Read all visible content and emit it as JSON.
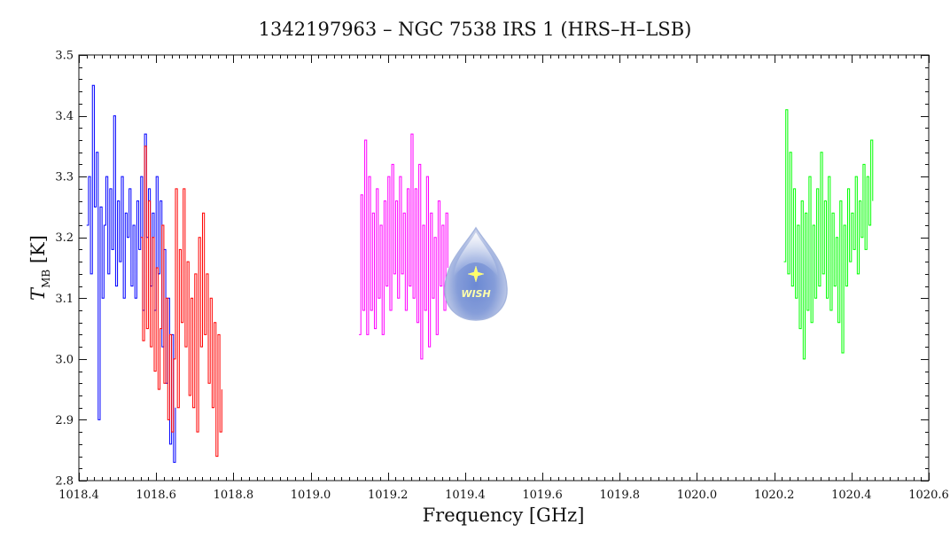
{
  "chart_data": {
    "type": "line",
    "title": "1342197963 – NGC 7538 IRS 1 (HRS–H–LSB)",
    "xlabel": "Frequency [GHz]",
    "ylabel_main": "T",
    "ylabel_sub": "MB",
    "ylabel_unit": " [K]",
    "xlim": [
      1018.4,
      1020.6
    ],
    "ylim": [
      2.8,
      3.5
    ],
    "xticks": [
      "1018.4",
      "1018.6",
      "1018.8",
      "1019.0",
      "1019.2",
      "1019.4",
      "1019.6",
      "1019.8",
      "1020.0",
      "1020.2",
      "1020.4",
      "1020.6"
    ],
    "yticks": [
      "2.8",
      "2.9",
      "3.0",
      "3.1",
      "3.2",
      "3.3",
      "3.4",
      "3.5"
    ],
    "x_minor_step": 0.02,
    "y_minor_step": 0.02,
    "grid": false,
    "legend": "none",
    "series": [
      {
        "color": "#0000ff",
        "x": [
          1018.42,
          1018.425,
          1018.43,
          1018.435,
          1018.44,
          1018.445,
          1018.45,
          1018.455,
          1018.46,
          1018.465,
          1018.47,
          1018.475,
          1018.48,
          1018.485,
          1018.49,
          1018.495,
          1018.5,
          1018.505,
          1018.51,
          1018.515,
          1018.52,
          1018.525,
          1018.53,
          1018.535,
          1018.54,
          1018.545,
          1018.55,
          1018.555,
          1018.56,
          1018.565,
          1018.57,
          1018.575,
          1018.58,
          1018.585,
          1018.59,
          1018.595,
          1018.6,
          1018.605,
          1018.61,
          1018.615,
          1018.62,
          1018.625,
          1018.63,
          1018.635,
          1018.64,
          1018.645,
          1018.65
        ],
        "values": [
          3.22,
          3.3,
          3.14,
          3.45,
          3.25,
          3.34,
          2.9,
          3.25,
          3.1,
          3.22,
          3.3,
          3.14,
          3.28,
          3.18,
          3.4,
          3.12,
          3.26,
          3.16,
          3.3,
          3.1,
          3.24,
          3.2,
          3.28,
          3.12,
          3.22,
          3.1,
          3.26,
          3.18,
          3.3,
          3.08,
          3.37,
          3.2,
          3.28,
          3.12,
          3.24,
          3.08,
          3.3,
          3.14,
          3.26,
          3.02,
          3.18,
          2.96,
          3.1,
          2.86,
          3.04,
          2.83,
          2.92
        ]
      },
      {
        "color": "#ff0000",
        "x": [
          1018.56,
          1018.565,
          1018.57,
          1018.575,
          1018.58,
          1018.585,
          1018.59,
          1018.595,
          1018.6,
          1018.605,
          1018.61,
          1018.615,
          1018.62,
          1018.625,
          1018.63,
          1018.635,
          1018.64,
          1018.645,
          1018.65,
          1018.655,
          1018.66,
          1018.665,
          1018.67,
          1018.675,
          1018.68,
          1018.685,
          1018.69,
          1018.695,
          1018.7,
          1018.705,
          1018.71,
          1018.715,
          1018.72,
          1018.725,
          1018.73,
          1018.735,
          1018.74,
          1018.745,
          1018.75,
          1018.755,
          1018.76,
          1018.765,
          1018.77
        ],
        "values": [
          3.2,
          3.03,
          3.35,
          3.05,
          3.26,
          3.02,
          3.2,
          2.98,
          3.15,
          2.95,
          3.05,
          3.22,
          2.96,
          3.1,
          2.9,
          3.04,
          2.88,
          3.0,
          3.28,
          2.92,
          3.18,
          3.06,
          3.28,
          3.02,
          3.16,
          2.94,
          3.1,
          2.92,
          3.14,
          2.88,
          3.2,
          3.02,
          3.24,
          3.04,
          3.14,
          2.96,
          3.1,
          2.92,
          3.06,
          2.84,
          3.04,
          2.88,
          2.95
        ]
      },
      {
        "color": "#ff00ff",
        "x": [
          1019.125,
          1019.13,
          1019.135,
          1019.14,
          1019.145,
          1019.15,
          1019.155,
          1019.16,
          1019.165,
          1019.17,
          1019.175,
          1019.18,
          1019.185,
          1019.19,
          1019.195,
          1019.2,
          1019.205,
          1019.21,
          1019.215,
          1019.22,
          1019.225,
          1019.23,
          1019.235,
          1019.24,
          1019.245,
          1019.25,
          1019.255,
          1019.26,
          1019.265,
          1019.27,
          1019.275,
          1019.28,
          1019.285,
          1019.29,
          1019.295,
          1019.3,
          1019.305,
          1019.31,
          1019.315,
          1019.32,
          1019.325,
          1019.33,
          1019.335,
          1019.34,
          1019.345,
          1019.35,
          1019.355
        ],
        "values": [
          3.04,
          3.27,
          3.08,
          3.36,
          3.04,
          3.3,
          3.08,
          3.24,
          3.05,
          3.28,
          3.1,
          3.22,
          3.04,
          3.26,
          3.12,
          3.3,
          3.08,
          3.32,
          3.14,
          3.26,
          3.1,
          3.3,
          3.14,
          3.24,
          3.08,
          3.28,
          3.12,
          3.37,
          3.1,
          3.28,
          3.06,
          3.32,
          3.0,
          3.22,
          3.08,
          3.3,
          3.02,
          3.24,
          3.1,
          3.2,
          3.04,
          3.26,
          3.12,
          3.22,
          3.08,
          3.24,
          3.15
        ]
      },
      {
        "color": "#00ff00",
        "x": [
          1020.225,
          1020.23,
          1020.235,
          1020.24,
          1020.245,
          1020.25,
          1020.255,
          1020.26,
          1020.265,
          1020.27,
          1020.275,
          1020.28,
          1020.285,
          1020.29,
          1020.295,
          1020.3,
          1020.305,
          1020.31,
          1020.315,
          1020.32,
          1020.325,
          1020.33,
          1020.335,
          1020.34,
          1020.345,
          1020.35,
          1020.355,
          1020.36,
          1020.365,
          1020.37,
          1020.375,
          1020.38,
          1020.385,
          1020.39,
          1020.395,
          1020.4,
          1020.405,
          1020.41,
          1020.415,
          1020.42,
          1020.425,
          1020.43,
          1020.435,
          1020.44,
          1020.445,
          1020.45,
          1020.455
        ],
        "values": [
          3.16,
          3.41,
          3.14,
          3.34,
          3.12,
          3.28,
          3.1,
          3.22,
          3.05,
          3.26,
          3.0,
          3.24,
          3.08,
          3.3,
          3.06,
          3.22,
          3.1,
          3.28,
          3.12,
          3.34,
          3.14,
          3.26,
          3.1,
          3.3,
          3.08,
          3.24,
          3.12,
          3.2,
          3.06,
          3.26,
          3.01,
          3.22,
          3.12,
          3.28,
          3.16,
          3.24,
          3.18,
          3.3,
          3.14,
          3.26,
          3.2,
          3.32,
          3.18,
          3.3,
          3.22,
          3.36,
          3.26
        ]
      }
    ]
  },
  "watermark": {
    "text": "WISH",
    "colors": {
      "drop_outer": "#b8c4e4",
      "drop_inner": "#6a86cf",
      "star": "#ffff66"
    }
  },
  "colors": {
    "axis": "#111111",
    "background": "#ffffff"
  }
}
